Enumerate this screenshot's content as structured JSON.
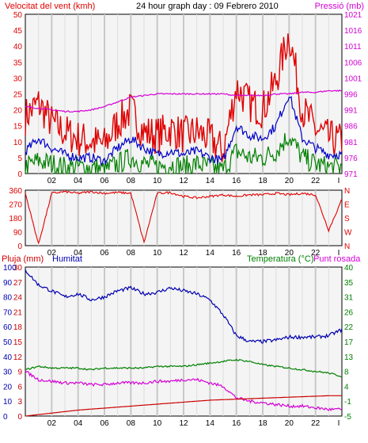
{
  "header": {
    "wind_label": "Velocitat del vent (kmh)",
    "title": "24 hour graph day : 09 Febrero 2010",
    "pressure_label": "Pressió (mb)"
  },
  "colors": {
    "background": "#f4f4f4",
    "grid_major": "#c8c8c8",
    "wind_gust": "#e00000",
    "wind_avg": "#0000c8",
    "wind_low": "#008000",
    "pressure": "#d400d4",
    "direction": "#e00000",
    "humidity": "#0000b0",
    "temperature": "#008000",
    "dewpoint": "#d400d4",
    "rain": "#cc0000"
  },
  "chart_data": [
    {
      "type": "line",
      "title": "24 hour graph day : 09 Febrero 2010",
      "ylabel": "Velocitat del vent (kmh)",
      "y2label": "Pressió (mb)",
      "ylim": [
        0,
        50
      ],
      "y2lim": [
        971,
        1021
      ],
      "y_ticks": [
        0,
        5,
        10,
        15,
        20,
        25,
        30,
        35,
        40,
        45,
        50
      ],
      "y2_ticks": [
        971,
        976,
        981,
        986,
        991,
        996,
        1001,
        1006,
        1011,
        1016,
        1021
      ],
      "x_ticks": [
        "02",
        "04",
        "06",
        "08",
        "10",
        "12",
        "14",
        "16",
        "18",
        "20",
        "22",
        "I"
      ],
      "hours": [
        0,
        1,
        2,
        3,
        4,
        5,
        6,
        7,
        8,
        9,
        10,
        11,
        12,
        13,
        14,
        15,
        16,
        17,
        18,
        19,
        20,
        21,
        22,
        23,
        24
      ],
      "series": [
        {
          "values": [
            18,
            22,
            16,
            13,
            11,
            10,
            9,
            16,
            20,
            13,
            12,
            14,
            12,
            13,
            11,
            7,
            27,
            22,
            20,
            29,
            44,
            20,
            14,
            11,
            10
          ]
        },
        {
          "values": [
            7,
            11,
            8,
            6,
            5,
            5,
            4,
            8,
            11,
            8,
            6,
            7,
            6,
            7,
            5,
            4,
            15,
            12,
            11,
            15,
            25,
            11,
            8,
            6,
            6
          ]
        },
        {
          "values": [
            2,
            4,
            3,
            2,
            2,
            2,
            1,
            3,
            5,
            3,
            2,
            3,
            2,
            3,
            2,
            1,
            7,
            5,
            5,
            7,
            12,
            5,
            3,
            2,
            2
          ]
        },
        {
          "name": "Pressió (mb)",
          "axis": "right",
          "values": [
            992,
            991.5,
            991,
            990.5,
            990.5,
            991,
            992,
            993.5,
            995,
            995.5,
            996,
            996,
            996,
            996,
            996,
            996,
            995.5,
            995.5,
            995.5,
            996,
            996,
            996.5,
            996.5,
            997,
            997
          ]
        }
      ]
    },
    {
      "type": "line",
      "ylabel": "",
      "ylim": [
        0,
        360
      ],
      "y_ticks": [
        0,
        90,
        180,
        270,
        360
      ],
      "y2_tick_labels": [
        "N",
        "W",
        "S",
        "E",
        "N"
      ],
      "x_ticks": [
        "02",
        "04",
        "06",
        "08",
        "10",
        "12",
        "14",
        "16",
        "18",
        "20",
        "22",
        "I"
      ],
      "hours": [
        0,
        1,
        2,
        3,
        4,
        5,
        6,
        7,
        8,
        9,
        10,
        11,
        12,
        13,
        14,
        15,
        16,
        17,
        18,
        19,
        20,
        21,
        22,
        23,
        24
      ],
      "series": [
        {
          "values": [
            340,
            10,
            340,
            350,
            340,
            350,
            340,
            345,
            340,
            20,
            340,
            345,
            320,
            310,
            320,
            330,
            320,
            330,
            330,
            340,
            330,
            340,
            330,
            100,
            300
          ]
        }
      ]
    },
    {
      "type": "line",
      "header_left": "Pluja (mm)",
      "header_mid": "Humitat",
      "header_right_a": "Temperatura (°C)",
      "header_right_b": "Punt rosada",
      "ylim": [
        0,
        100
      ],
      "y_ticks_rain": [
        0,
        3,
        6,
        9,
        12,
        15,
        18,
        21,
        24,
        27,
        30
      ],
      "y_ticks_hum": [
        0,
        10,
        20,
        30,
        40,
        50,
        60,
        70,
        80,
        90,
        100
      ],
      "y2lim": [
        -5,
        40
      ],
      "y2_ticks": [
        -5,
        -1,
        4,
        8,
        13,
        17,
        22,
        26,
        31,
        35,
        40
      ],
      "x_ticks": [
        "02",
        "04",
        "06",
        "08",
        "10",
        "12",
        "14",
        "16",
        "18",
        "20",
        "22",
        "I"
      ],
      "hours": [
        0,
        1,
        2,
        3,
        4,
        5,
        6,
        7,
        8,
        9,
        10,
        11,
        12,
        13,
        14,
        15,
        16,
        17,
        18,
        19,
        20,
        21,
        22,
        23,
        24
      ],
      "series": [
        {
          "name": "Humitat",
          "values": [
            98,
            88,
            84,
            80,
            82,
            78,
            80,
            84,
            86,
            82,
            83,
            86,
            84,
            82,
            78,
            68,
            54,
            50,
            50,
            51,
            53,
            53,
            53,
            54,
            58
          ]
        },
        {
          "name": "Temperatura (°C)",
          "axis": "right",
          "values": [
            9,
            10,
            9.5,
            9.5,
            9.5,
            9,
            9.5,
            9.5,
            9.5,
            9.5,
            10,
            10,
            10,
            10.5,
            11,
            11.5,
            12,
            11.5,
            10.5,
            10,
            9.5,
            9,
            8.5,
            8,
            7
          ]
        },
        {
          "name": "Punt rosada",
          "axis": "right",
          "values": [
            8.5,
            6,
            5.5,
            5,
            5,
            4.5,
            4.5,
            5,
            5,
            5,
            5.5,
            5.5,
            6,
            6,
            5,
            4,
            0.5,
            -0.5,
            -1,
            -1.5,
            -2,
            -2,
            -2.5,
            -3,
            -3
          ]
        },
        {
          "name": "Pluja (mm)",
          "values": [
            0,
            0.3,
            0.6,
            0.9,
            1.2,
            1.4,
            1.6,
            1.8,
            2,
            2.2,
            2.4,
            2.6,
            2.8,
            3,
            3.2,
            3.3,
            3.4,
            3.5,
            3.6,
            3.7,
            3.8,
            3.9,
            4,
            4.1,
            4.1
          ]
        }
      ]
    }
  ]
}
